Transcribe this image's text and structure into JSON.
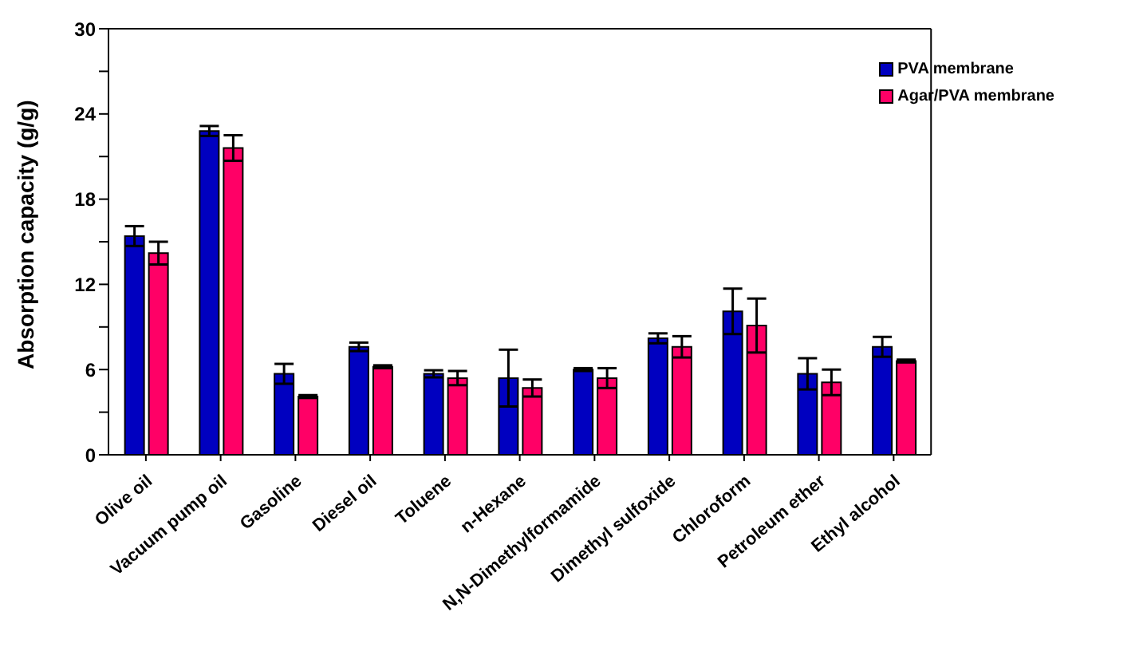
{
  "chart_data": {
    "type": "bar",
    "ylabel": "Absorption capacity (g/g)",
    "categories": [
      "Olive oil",
      "Vacuum pump oil",
      "Gasoline",
      "Diesel oil",
      "Toluene",
      "n-Hexane",
      "N,N-Dimethylformamide",
      "Dimethyl sulfoxide",
      "Chloroform",
      "Petroleum ether",
      "Ethyl alcohol"
    ],
    "series": [
      {
        "name": "PVA membrane",
        "color": "#0000c0",
        "values": [
          15.4,
          22.8,
          5.7,
          7.6,
          5.7,
          5.4,
          6.0,
          8.2,
          10.1,
          5.7,
          7.6
        ],
        "errors": [
          0.7,
          0.35,
          0.7,
          0.3,
          0.25,
          2.0,
          0.1,
          0.35,
          1.6,
          1.1,
          0.7
        ]
      },
      {
        "name": "Agar/PVA membrane",
        "color": "#ff0066",
        "values": [
          14.2,
          21.6,
          4.1,
          6.2,
          5.4,
          4.7,
          5.4,
          7.6,
          9.1,
          5.1,
          6.6
        ],
        "errors": [
          0.8,
          0.9,
          0.1,
          0.1,
          0.5,
          0.6,
          0.7,
          0.75,
          1.9,
          0.9,
          0.1
        ]
      }
    ],
    "ylim": [
      0,
      30
    ],
    "yticks": [
      0,
      {
        "value": 3,
        "label": null
      },
      6,
      {
        "value": 9,
        "label": null
      },
      12,
      {
        "value": 15,
        "label": null
      },
      18,
      {
        "value": 21,
        "label": null
      },
      24,
      {
        "value": 27,
        "label": null
      },
      30
    ],
    "legend": "top right"
  }
}
